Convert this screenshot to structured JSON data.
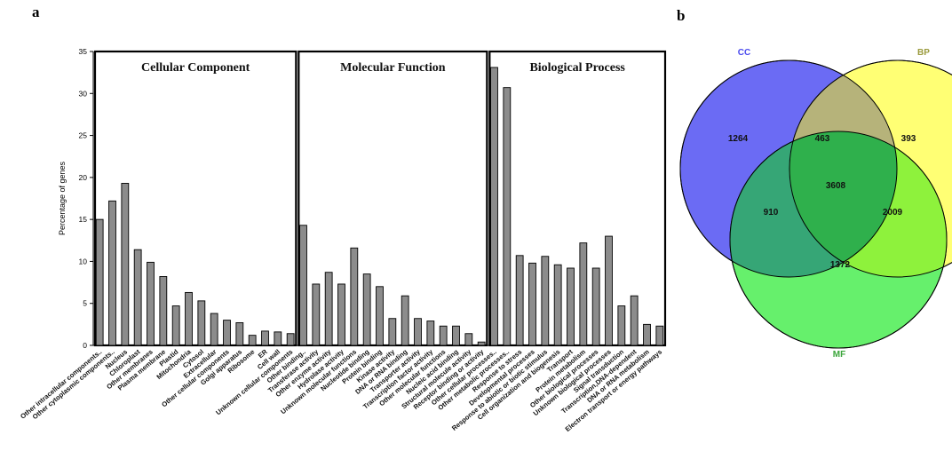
{
  "panels": {
    "a": "a",
    "b": "b"
  },
  "chart_data": [
    {
      "type": "bar",
      "ylabel": "Percentage of genes",
      "ylim": [
        0,
        35
      ],
      "yticks": [
        0,
        5,
        10,
        15,
        20,
        25,
        30,
        35
      ],
      "bar_color": "#8c8c8c",
      "grid": false,
      "groups": [
        {
          "title": "Cellular Component",
          "categories": [
            "Other intracellular components..",
            "Other cytoplasmic components..",
            "Nucleus",
            "Chloroplast",
            "Other membranes",
            "Plasma membrane",
            "Plastid",
            "Mitochondria",
            "Cytosol",
            "Extracellular",
            "Other cellular components",
            "Golgi apparatus",
            "Ribosome",
            "ER",
            "Cell wall",
            "Unknown cellular components"
          ],
          "values": [
            15.0,
            17.2,
            19.3,
            11.4,
            9.9,
            8.2,
            4.7,
            6.3,
            5.3,
            3.8,
            3.0,
            2.7,
            1.2,
            1.7,
            1.6,
            1.4
          ]
        },
        {
          "title": "Molecular Function",
          "categories": [
            "Other binding..",
            "Transferase activity",
            "Other enzyme activity",
            "Hydrolase activity",
            "Unknown molecular functions",
            "Nucleotide binding",
            "Protein binding",
            "Kinase activity",
            "DNA or RNA binding",
            "Transporter activity",
            "Transcription factor activity",
            "Other molecular functions",
            "Nucleic acid binding",
            "Structural molecule activity",
            "Receptor binding or activity"
          ],
          "values": [
            14.3,
            7.3,
            8.7,
            7.3,
            11.6,
            8.5,
            7.0,
            3.2,
            5.9,
            3.2,
            2.9,
            2.3,
            2.3,
            1.4,
            0.4
          ]
        },
        {
          "title": "Biological Process",
          "categories": [
            "Other cellular processes..",
            "Other metabolic processes..",
            "Response to stress",
            "Developmental processes",
            "Response to abiotic or biotic stimulus",
            "Cell organization and biogenesis",
            "Transport",
            "Protein metabolism",
            "Other biological processes",
            "Unknown biological processes",
            "Signal transduction",
            "Transcription,DNA-dependent",
            "DNA or RNA metabolism",
            "Electron transport or energy pathways"
          ],
          "values": [
            33.1,
            30.7,
            10.7,
            9.8,
            10.6,
            9.6,
            9.2,
            12.2,
            9.2,
            13.0,
            4.7,
            5.9,
            2.5,
            2.3
          ]
        }
      ]
    },
    {
      "type": "venn",
      "sets": [
        {
          "name": "CC",
          "color": "#6b6bf4",
          "label_color": "#4a4aee"
        },
        {
          "name": "BP",
          "color": "#ffff74",
          "label_color": "#9a9a3c"
        },
        {
          "name": "MF",
          "color": "#66f06c",
          "label_color": "#3aa53a"
        }
      ],
      "regions": {
        "CC_only": "1264",
        "BP_only": "393",
        "MF_only": "1372",
        "CC_BP": "463",
        "CC_MF": "910",
        "BP_MF": "2009",
        "CC_BP_MF": "3608"
      },
      "region_colors": {
        "CC_BP": "#b6b37a",
        "CC_MF": "#36a676",
        "BP_MF": "#8ef23c",
        "CC_BP_MF": "#2fb04c"
      }
    }
  ]
}
